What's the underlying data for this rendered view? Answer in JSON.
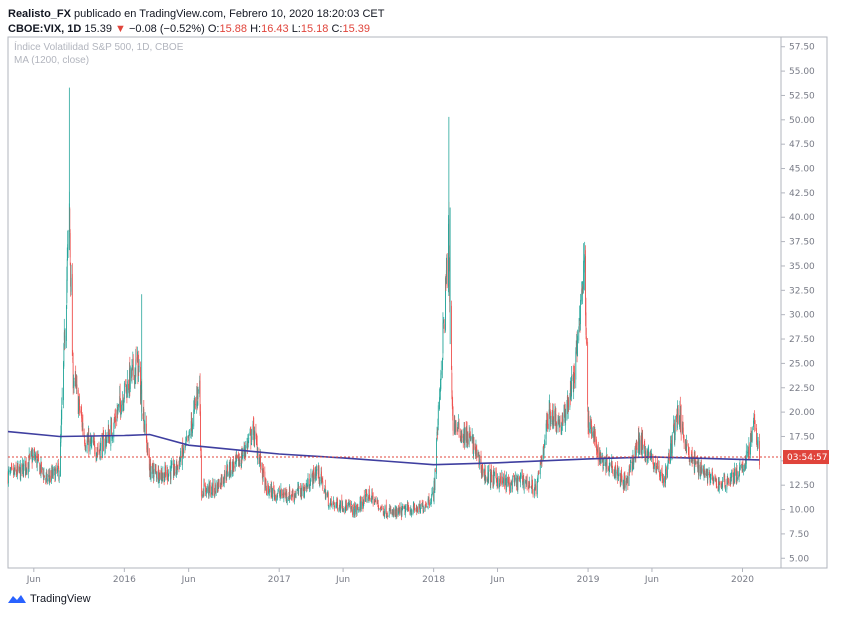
{
  "header": {
    "author": "Realisto_FX",
    "published_text": "publicado en TradingView.com, Febrero 10, 2020 18:20:03 CET",
    "symbol": "CBOE:VIX, 1D",
    "last": "15.39",
    "arrow": "▼",
    "change": "−0.08 (−0.52%)",
    "o_label": "O:",
    "o_value": "15.88",
    "h_label": "H:",
    "h_value": "16.43",
    "l_label": "L:",
    "l_value": "15.18",
    "c_label": "C:",
    "c_value": "15.39"
  },
  "footer": {
    "brand": "TradingView",
    "logo_icon": "tradingview-logo-icon"
  },
  "colors": {
    "up": "#26a69a",
    "down": "#ef5350",
    "ma": "#3f3fa0",
    "price_line": "#e0443b",
    "price_tag_bg": "#e0443b"
  },
  "chart_data": {
    "type": "candlestick",
    "title": "Índice Volatilidad S&P 500, 1D, CBOE",
    "indicator_label": "MA (1200, close)",
    "ylim": [
      4.0,
      58.5
    ],
    "y_ticks": [
      "57.50",
      "55.00",
      "52.50",
      "50.00",
      "47.50",
      "45.00",
      "42.50",
      "40.00",
      "37.50",
      "35.00",
      "32.50",
      "30.00",
      "27.50",
      "25.00",
      "22.50",
      "20.00",
      "17.50",
      "15.00",
      "12.50",
      "10.00",
      "7.50",
      "5.00"
    ],
    "x_ticks": [
      "Jun",
      "2016",
      "Jun",
      "2017",
      "Jun",
      "2018",
      "Jun",
      "2019",
      "Jun",
      "2020"
    ],
    "x_tick_dates": [
      "2015-06-01",
      "2016-01-01",
      "2016-06-01",
      "2017-01-01",
      "2017-06-01",
      "2018-01-01",
      "2018-06-01",
      "2019-01-01",
      "2019-06-01",
      "2020-01-01"
    ],
    "x_range": [
      "2015-04-01",
      "2020-04-01"
    ],
    "current_price": 15.39,
    "price_tag": "03:54:57",
    "series_close": [
      [
        "2015-04-01",
        13.5
      ],
      [
        "2015-05-01",
        13.8
      ],
      [
        "2015-06-01",
        15.5
      ],
      [
        "2015-07-01",
        13.0
      ],
      [
        "2015-08-01",
        14.0
      ],
      [
        "2015-08-24",
        40.7
      ],
      [
        "2015-09-01",
        24.0
      ],
      [
        "2015-10-01",
        17.0
      ],
      [
        "2015-11-01",
        16.0
      ],
      [
        "2015-12-01",
        18.0
      ],
      [
        "2016-01-01",
        22.0
      ],
      [
        "2016-02-01",
        25.0
      ],
      [
        "2016-03-01",
        14.0
      ],
      [
        "2016-04-01",
        13.5
      ],
      [
        "2016-05-01",
        14.0
      ],
      [
        "2016-06-01",
        17.0
      ],
      [
        "2016-06-27",
        23.0
      ],
      [
        "2016-07-01",
        12.0
      ],
      [
        "2016-08-01",
        12.0
      ],
      [
        "2016-09-01",
        14.0
      ],
      [
        "2016-10-01",
        15.0
      ],
      [
        "2016-11-01",
        18.0
      ],
      [
        "2016-12-01",
        12.0
      ],
      [
        "2017-01-01",
        11.5
      ],
      [
        "2017-02-01",
        11.5
      ],
      [
        "2017-03-01",
        12.0
      ],
      [
        "2017-04-01",
        14.0
      ],
      [
        "2017-05-01",
        10.5
      ],
      [
        "2017-06-01",
        10.5
      ],
      [
        "2017-07-01",
        9.8
      ],
      [
        "2017-08-01",
        11.5
      ],
      [
        "2017-09-01",
        10.0
      ],
      [
        "2017-10-01",
        9.5
      ],
      [
        "2017-11-01",
        10.0
      ],
      [
        "2017-12-01",
        10.0
      ],
      [
        "2018-01-01",
        11.5
      ],
      [
        "2018-02-05",
        37.3
      ],
      [
        "2018-02-15",
        19.0
      ],
      [
        "2018-03-01",
        18.0
      ],
      [
        "2018-04-01",
        17.0
      ],
      [
        "2018-05-01",
        13.5
      ],
      [
        "2018-06-01",
        13.0
      ],
      [
        "2018-07-01",
        12.5
      ],
      [
        "2018-08-01",
        13.0
      ],
      [
        "2018-09-01",
        12.0
      ],
      [
        "2018-10-01",
        20.0
      ],
      [
        "2018-11-01",
        18.5
      ],
      [
        "2018-12-01",
        24.0
      ],
      [
        "2018-12-24",
        36.1
      ],
      [
        "2019-01-01",
        19.0
      ],
      [
        "2019-02-01",
        15.0
      ],
      [
        "2019-03-01",
        14.5
      ],
      [
        "2019-04-01",
        12.5
      ],
      [
        "2019-05-01",
        17.0
      ],
      [
        "2019-06-01",
        15.0
      ],
      [
        "2019-07-01",
        13.0
      ],
      [
        "2019-08-01",
        20.0
      ],
      [
        "2019-09-01",
        15.0
      ],
      [
        "2019-10-01",
        14.0
      ],
      [
        "2019-11-01",
        12.5
      ],
      [
        "2019-12-01",
        13.0
      ],
      [
        "2020-01-01",
        14.0
      ],
      [
        "2020-01-31",
        18.8
      ],
      [
        "2020-02-10",
        15.39
      ]
    ],
    "series_ma": [
      [
        "2015-04-01",
        18.0
      ],
      [
        "2015-08-01",
        17.5
      ],
      [
        "2016-01-01",
        17.6
      ],
      [
        "2016-03-01",
        17.7
      ],
      [
        "2016-06-01",
        16.6
      ],
      [
        "2017-01-01",
        15.7
      ],
      [
        "2017-06-01",
        15.3
      ],
      [
        "2018-01-01",
        14.6
      ],
      [
        "2018-06-01",
        14.8
      ],
      [
        "2019-01-01",
        15.2
      ],
      [
        "2019-06-01",
        15.4
      ],
      [
        "2020-02-10",
        15.1
      ]
    ]
  }
}
